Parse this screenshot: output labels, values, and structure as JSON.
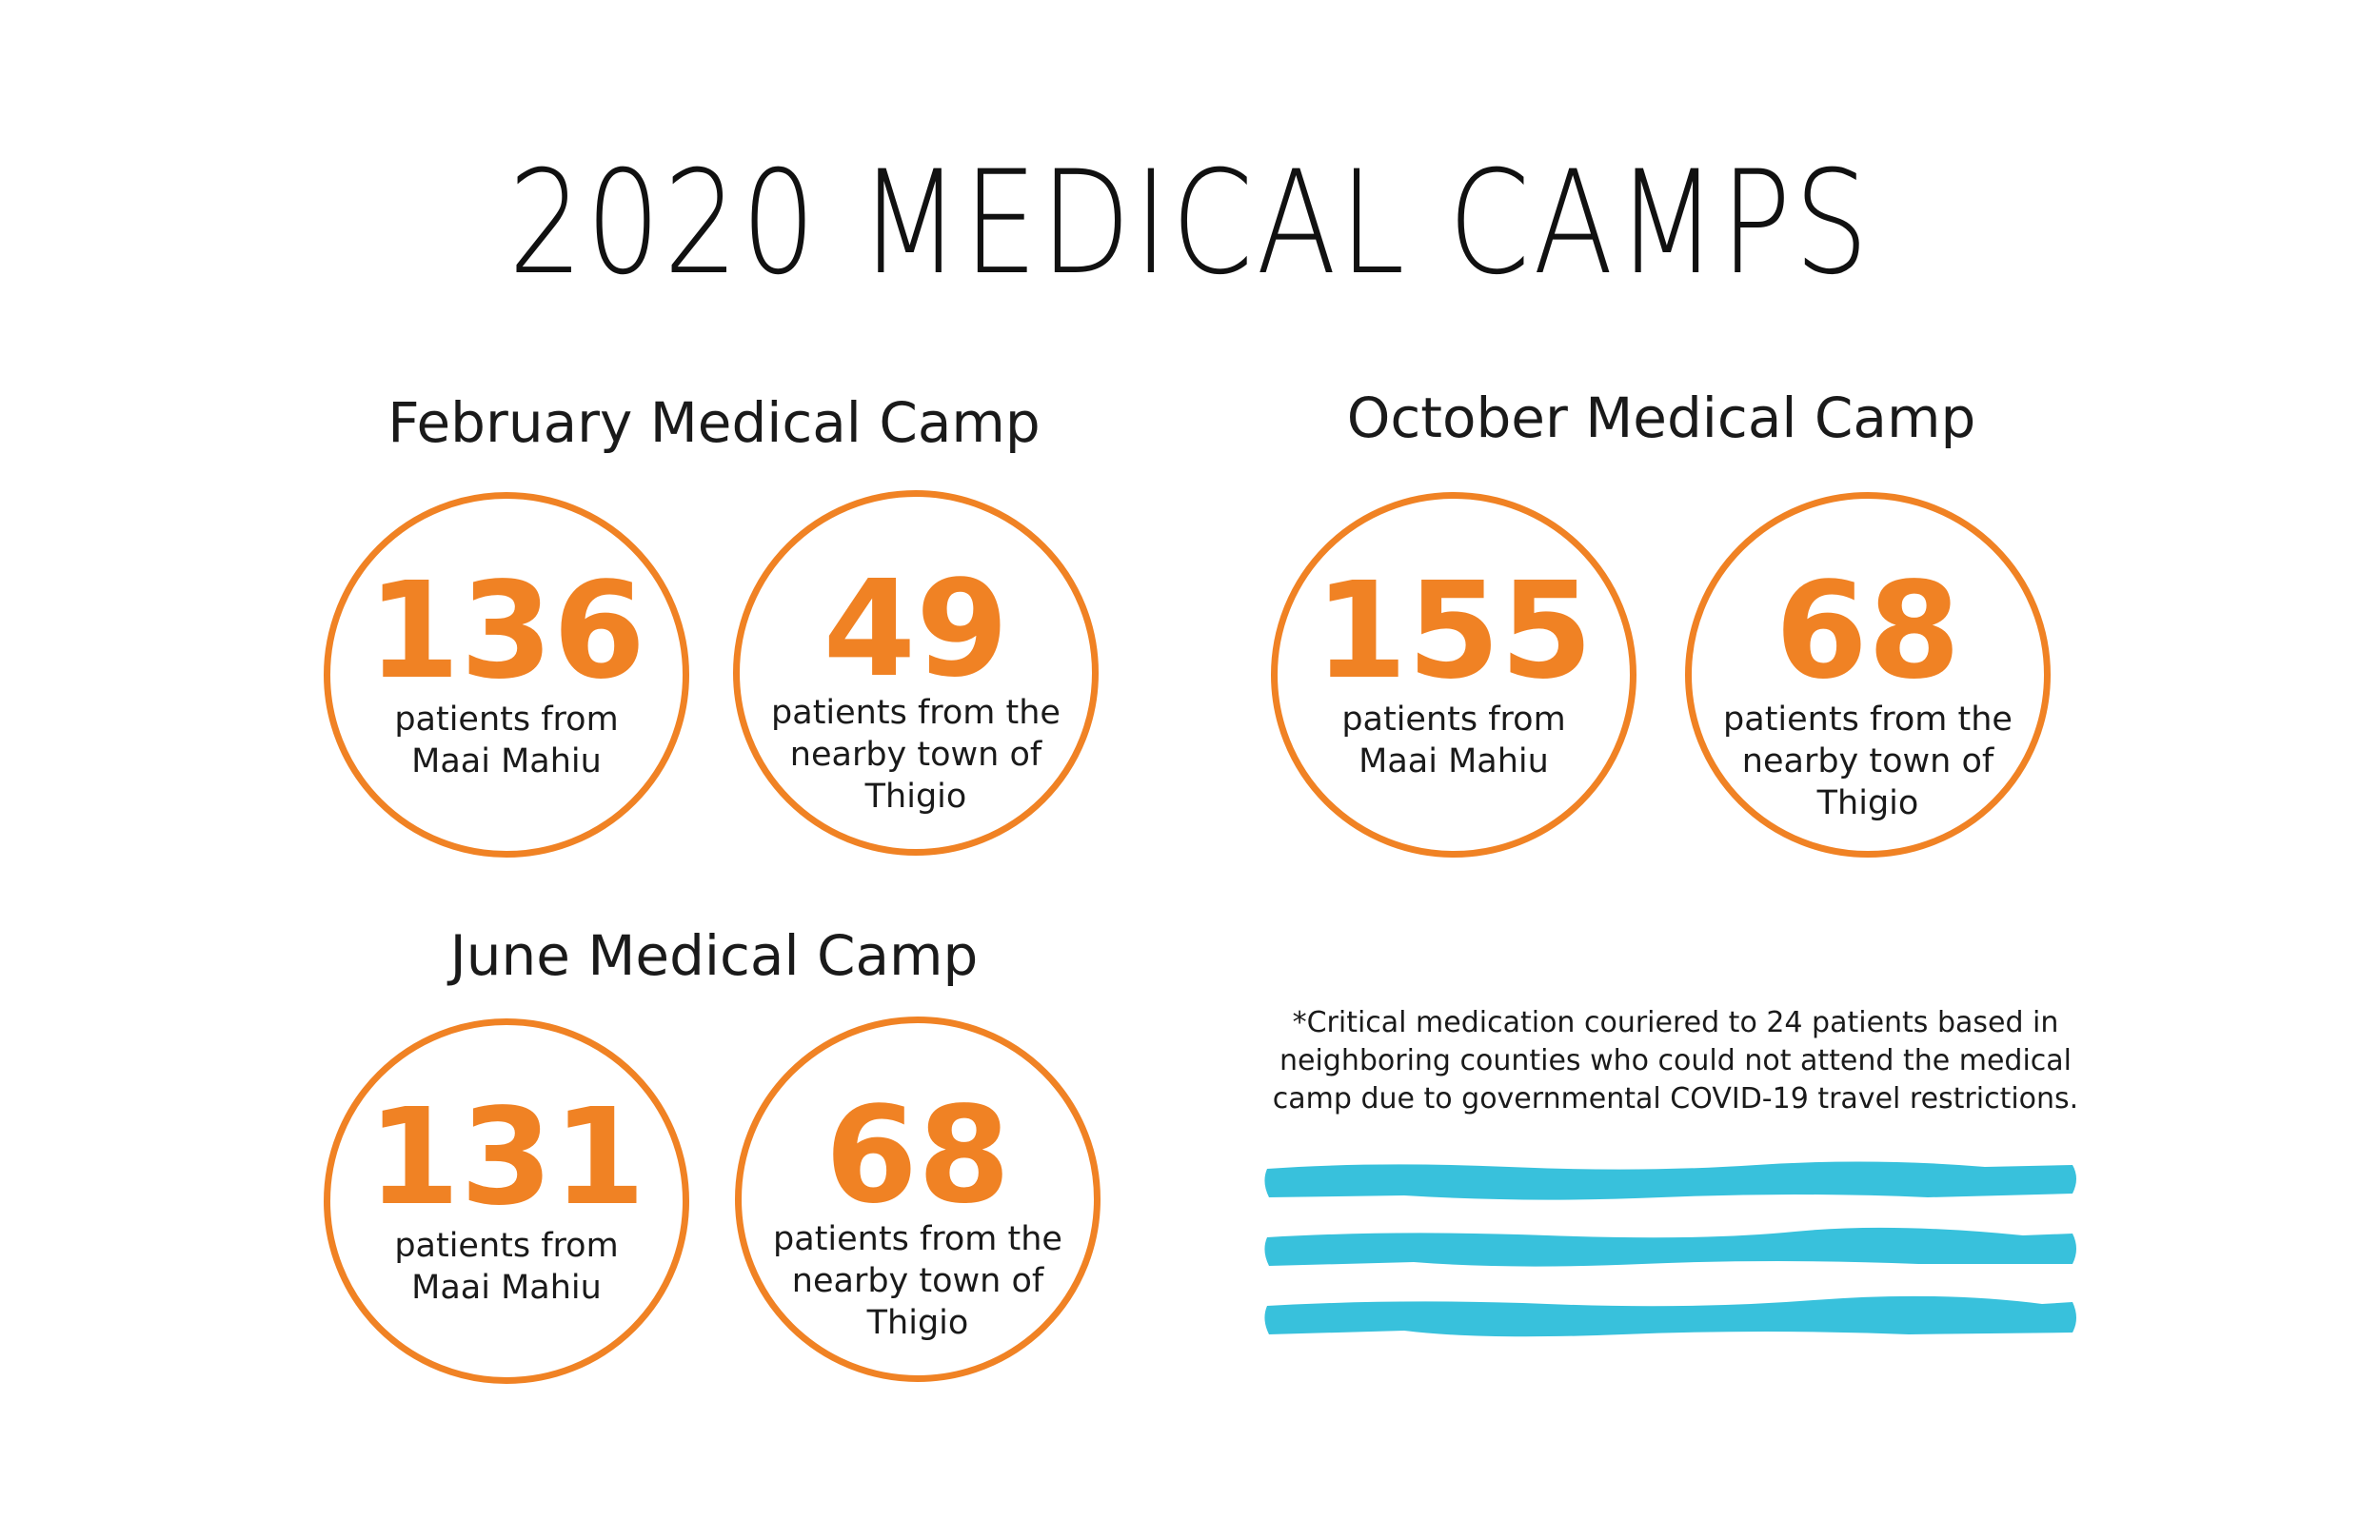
{
  "title": "2020 MEDICAL CAMPS",
  "accent_color": "#f08224",
  "stripe_color": "#38c1dc",
  "camps": [
    {
      "name": "February Medical Camp",
      "stats": [
        {
          "value": "136",
          "desc": "patients from Maai Mahiu"
        },
        {
          "value": "49",
          "desc": "patients from the nearby town of Thigio"
        }
      ]
    },
    {
      "name": "October Medical Camp",
      "stats": [
        {
          "value": "155",
          "desc": "patients from Maai Mahiu"
        },
        {
          "value": "68",
          "desc": "patients from the nearby town of Thigio"
        }
      ]
    },
    {
      "name": "June Medical Camp",
      "stats": [
        {
          "value": "131",
          "desc": "patients from Maai Mahiu"
        },
        {
          "value": "68",
          "desc": "patients from the nearby town of Thigio"
        }
      ]
    }
  ],
  "note": "*Critical medication couriered to 24 patients based in neighboring counties who could not attend the medical camp due to governmental COVID-19 travel restrictions."
}
